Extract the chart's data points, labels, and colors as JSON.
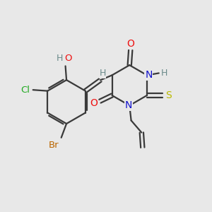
{
  "bg_color": "#e8e8e8",
  "bond_color": "#3a3a3a",
  "bond_width": 1.6,
  "atom_colors": {
    "C": "#3a3a3a",
    "H": "#6a8a8a",
    "O": "#ee1111",
    "N": "#1111cc",
    "S": "#bbbb00",
    "Cl": "#22aa22",
    "Br": "#bb6600"
  },
  "font_size": 9.5
}
